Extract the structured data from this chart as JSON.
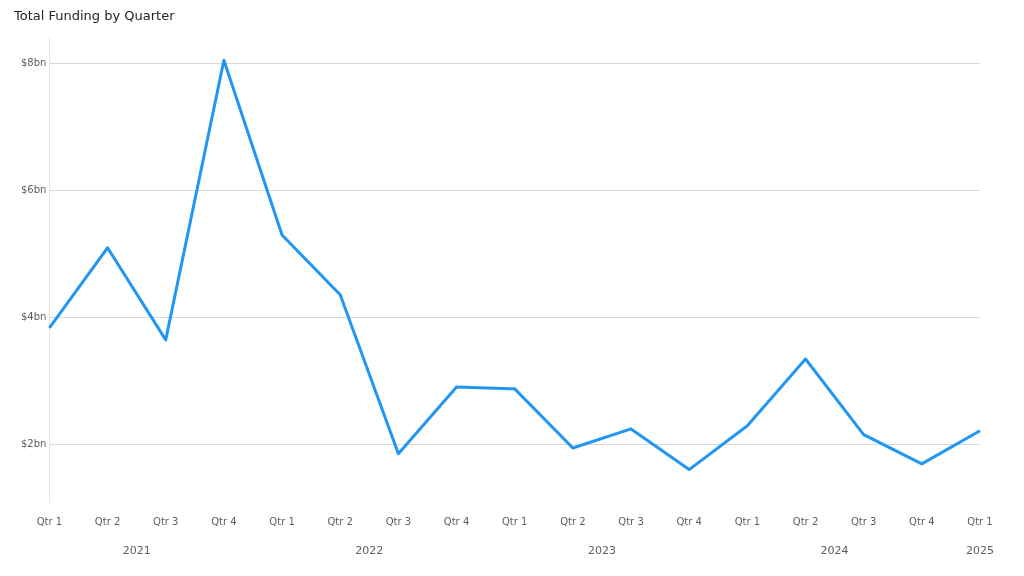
{
  "chart_data": {
    "type": "line",
    "title": "Total Funding by Quarter",
    "categories": [
      "Qtr 1",
      "Qtr 2",
      "Qtr 3",
      "Qtr 4",
      "Qtr 1",
      "Qtr 2",
      "Qtr 3",
      "Qtr 4",
      "Qtr 1",
      "Qtr 2",
      "Qtr 3",
      "Qtr 4",
      "Qtr 1",
      "Qtr 2",
      "Qtr 3",
      "Qtr 4",
      "Qtr 1"
    ],
    "series": [
      {
        "color": "#2196f3",
        "values": [
          3.84,
          5.1,
          3.65,
          8.05,
          5.3,
          4.36,
          1.86,
          2.91,
          2.88,
          1.95,
          2.25,
          1.61,
          2.3,
          3.35,
          2.16,
          1.7,
          2.22
        ]
      }
    ],
    "annotations": [
      "2021",
      "2022",
      "2023",
      "2024",
      "2025"
    ],
    "ylim": [
      1.1,
      8.4
    ],
    "yticks": [
      {
        "value": 2,
        "label": "$2bn"
      },
      {
        "value": 4,
        "label": "$4bn"
      },
      {
        "value": 6,
        "label": "$6bn"
      },
      {
        "value": 8,
        "label": "$8bn"
      }
    ],
    "grid": "y",
    "legend": false,
    "marker": "none",
    "line_style": "solid"
  }
}
